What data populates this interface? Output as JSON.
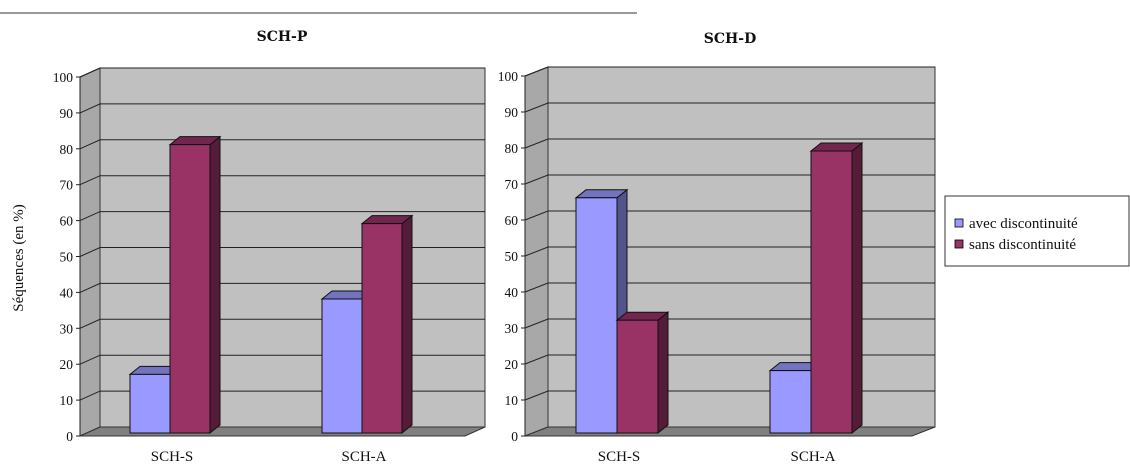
{
  "y_axis_label": "Séquences (en %)",
  "colors": {
    "avec": "#9999ff",
    "sans": "#993366",
    "wall": "#c0c0c0",
    "floor": "#808080"
  },
  "legend": [
    "avec discontinuité",
    "sans discontinuité"
  ],
  "chart_data": [
    {
      "type": "bar",
      "title": "SCH-P",
      "categories": [
        "SCH-S",
        "SCH-A"
      ],
      "series": [
        {
          "name": "avec discontinuité",
          "values": [
            18,
            39
          ]
        },
        {
          "name": "sans discontinuité",
          "values": [
            82,
            60
          ]
        }
      ],
      "ylim": [
        0,
        100
      ],
      "yticks": [
        0,
        10,
        20,
        30,
        40,
        50,
        60,
        70,
        80,
        90,
        100
      ],
      "grid": true
    },
    {
      "type": "bar",
      "title": "SCH-D",
      "categories": [
        "SCH-S",
        "SCH-A"
      ],
      "series": [
        {
          "name": "avec discontinuité",
          "values": [
            67,
            19
          ]
        },
        {
          "name": "sans discontinuité",
          "values": [
            33,
            80
          ]
        }
      ],
      "ylim": [
        0,
        100
      ],
      "yticks": [
        0,
        10,
        20,
        30,
        40,
        50,
        60,
        70,
        80,
        90,
        100
      ],
      "grid": true
    }
  ]
}
